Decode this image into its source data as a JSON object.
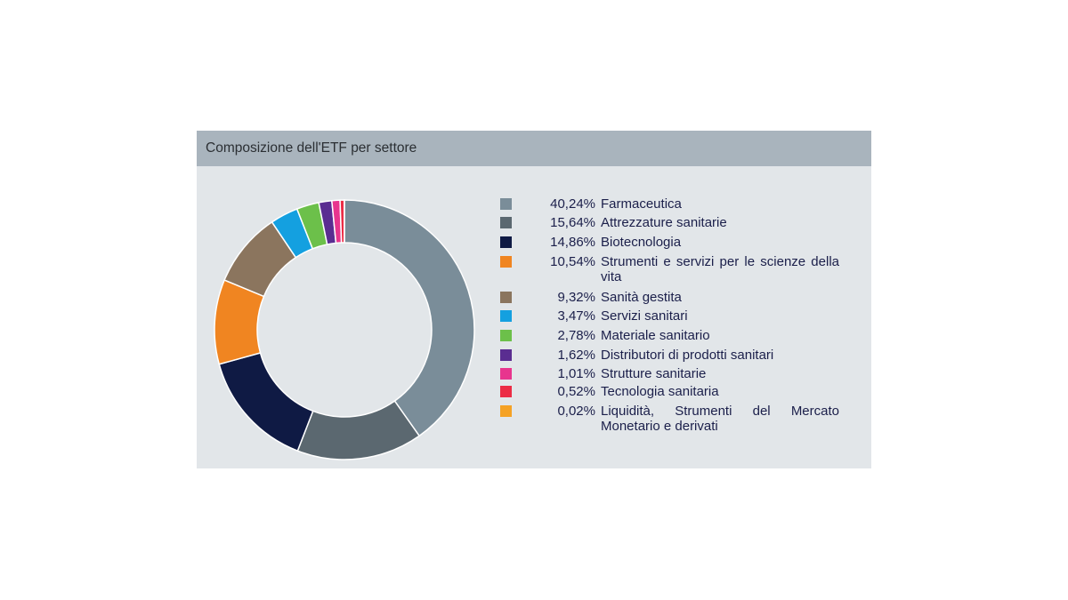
{
  "header": {
    "title": "Composizione dell'ETF  per settore"
  },
  "chart_data": {
    "type": "pie",
    "title": "Composizione dell'ETF  per settore",
    "donut": true,
    "legend_position": "right",
    "slices": [
      {
        "label": "Farmaceutica",
        "value": 40.24,
        "display": "40,24%",
        "color": "#7a8d99"
      },
      {
        "label": "Attrezzature sanitarie",
        "value": 15.64,
        "display": "15,64%",
        "color": "#5b6870"
      },
      {
        "label": "Biotecnologia",
        "value": 14.86,
        "display": "14,86%",
        "color": "#0f1a44"
      },
      {
        "label": "Strumenti e servizi per le scienze della vita",
        "value": 10.54,
        "display": "10,54%",
        "color": "#f08521"
      },
      {
        "label": "Sanità gestita",
        "value": 9.32,
        "display": "9,32%",
        "color": "#8b755e"
      },
      {
        "label": "Servizi sanitari",
        "value": 3.47,
        "display": "3,47%",
        "color": "#14a0e0"
      },
      {
        "label": "Materiale sanitario",
        "value": 2.78,
        "display": "2,78%",
        "color": "#6cc04a"
      },
      {
        "label": "Distributori di prodotti sanitari",
        "value": 1.62,
        "display": "1,62%",
        "color": "#5a2d91"
      },
      {
        "label": "Strutture sanitarie",
        "value": 1.01,
        "display": "1,01%",
        "color": "#e8358e"
      },
      {
        "label": "Tecnologia sanitaria",
        "value": 0.52,
        "display": "0,52%",
        "color": "#ec2c45"
      },
      {
        "label": "Liquidità, Strumenti del Mercato Monetario e derivati",
        "value": 0.02,
        "display": "0,02%",
        "color": "#f5a225"
      }
    ]
  }
}
